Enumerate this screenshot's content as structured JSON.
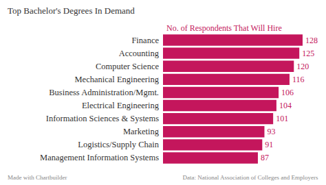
{
  "chart_data": {
    "type": "bar",
    "orientation": "horizontal",
    "title": "Top Bachelor's Degrees In Demand",
    "subtitle": "No. of Respondents That Will Hire",
    "annotations": [
      "Made with Chartbuilder",
      "Data: National Association of Colleges and Employers"
    ],
    "categories": [
      "Finance",
      "Accounting",
      "Computer Science",
      "Mechanical Engineering",
      "Business Administration/Mgmt.",
      "Electrical Engineering",
      "Information Sciences & Systems",
      "Marketing",
      "Logistics/Supply Chain",
      "Management Information Systems"
    ],
    "values": [
      128,
      125,
      120,
      116,
      106,
      104,
      101,
      93,
      91,
      87
    ],
    "color": "#c4165c",
    "xlim": [
      0,
      140
    ],
    "xticks": [
      0,
      20,
      40,
      60,
      80,
      100,
      120,
      140
    ],
    "grid": false,
    "data_labels": true,
    "tick_labels": "y"
  }
}
